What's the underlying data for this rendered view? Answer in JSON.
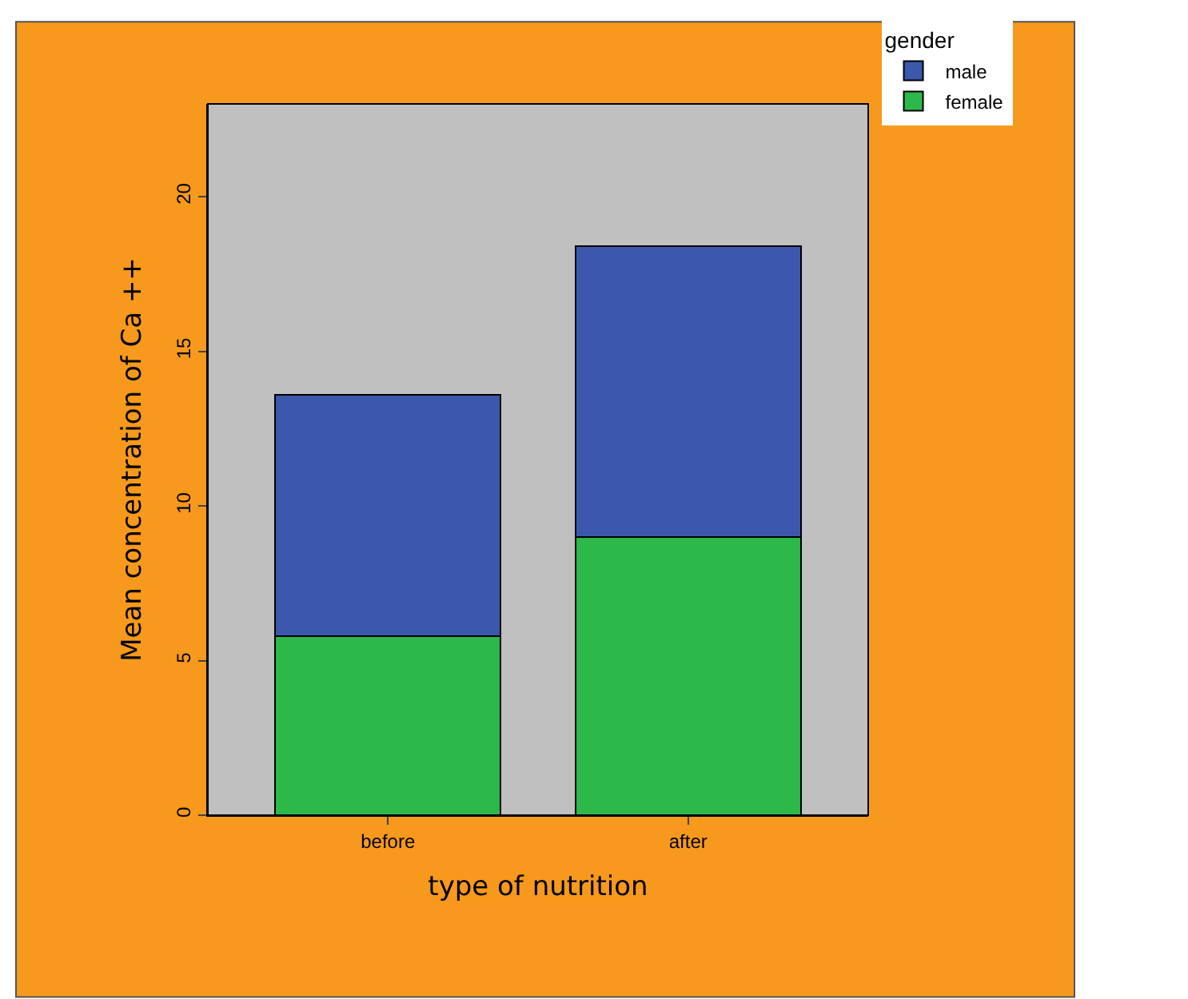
{
  "chart_data": {
    "type": "bar",
    "stacked": true,
    "xlabel": "type of nutrition",
    "ylabel": "Mean concentration of Ca ++",
    "legend_title": "gender",
    "legend": "top right",
    "categories": [
      "before",
      "after"
    ],
    "series": [
      {
        "name": "female",
        "color": "#2db84a",
        "values": [
          5.8,
          9.0
        ]
      },
      {
        "name": "male",
        "color": "#3c58ad",
        "values": [
          7.8,
          9.4
        ]
      }
    ],
    "ylim": [
      0,
      23
    ],
    "yticks": [
      0,
      5,
      10,
      15,
      20
    ],
    "grid": false
  }
}
